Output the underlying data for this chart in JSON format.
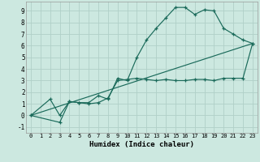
{
  "xlabel": "Humidex (Indice chaleur)",
  "bg_color": "#cce8e0",
  "grid_color": "#b0d0c8",
  "line_color": "#1a6a5a",
  "xlim": [
    -0.5,
    23.5
  ],
  "ylim": [
    -1.5,
    9.8
  ],
  "xticks": [
    0,
    1,
    2,
    3,
    4,
    5,
    6,
    7,
    8,
    9,
    10,
    11,
    12,
    13,
    14,
    15,
    16,
    17,
    18,
    19,
    20,
    21,
    22,
    23
  ],
  "yticks": [
    -1,
    0,
    1,
    2,
    3,
    4,
    5,
    6,
    7,
    8,
    9
  ],
  "line1_x": [
    0,
    2,
    3,
    4,
    5,
    6,
    7,
    8,
    9,
    10,
    11,
    12,
    13,
    14,
    15,
    16,
    17,
    18,
    19,
    20,
    21,
    22,
    23
  ],
  "line1_y": [
    0.0,
    1.4,
    0.0,
    1.2,
    1.1,
    1.1,
    1.7,
    1.4,
    3.2,
    3.0,
    5.0,
    6.5,
    7.5,
    8.4,
    9.3,
    9.3,
    8.7,
    9.1,
    9.0,
    7.5,
    7.0,
    6.5,
    6.2
  ],
  "line2_x": [
    0,
    3,
    4,
    5,
    6,
    7,
    8,
    9,
    10,
    11,
    12,
    13,
    14,
    15,
    16,
    17,
    18,
    19,
    20,
    21,
    22,
    23
  ],
  "line2_y": [
    0.0,
    -0.6,
    1.2,
    1.1,
    1.0,
    1.1,
    1.5,
    3.0,
    3.1,
    3.2,
    3.1,
    3.0,
    3.1,
    3.0,
    3.0,
    3.1,
    3.1,
    3.0,
    3.2,
    3.2,
    3.2,
    6.2
  ],
  "line3_x": [
    0,
    23
  ],
  "line3_y": [
    0.0,
    6.2
  ]
}
